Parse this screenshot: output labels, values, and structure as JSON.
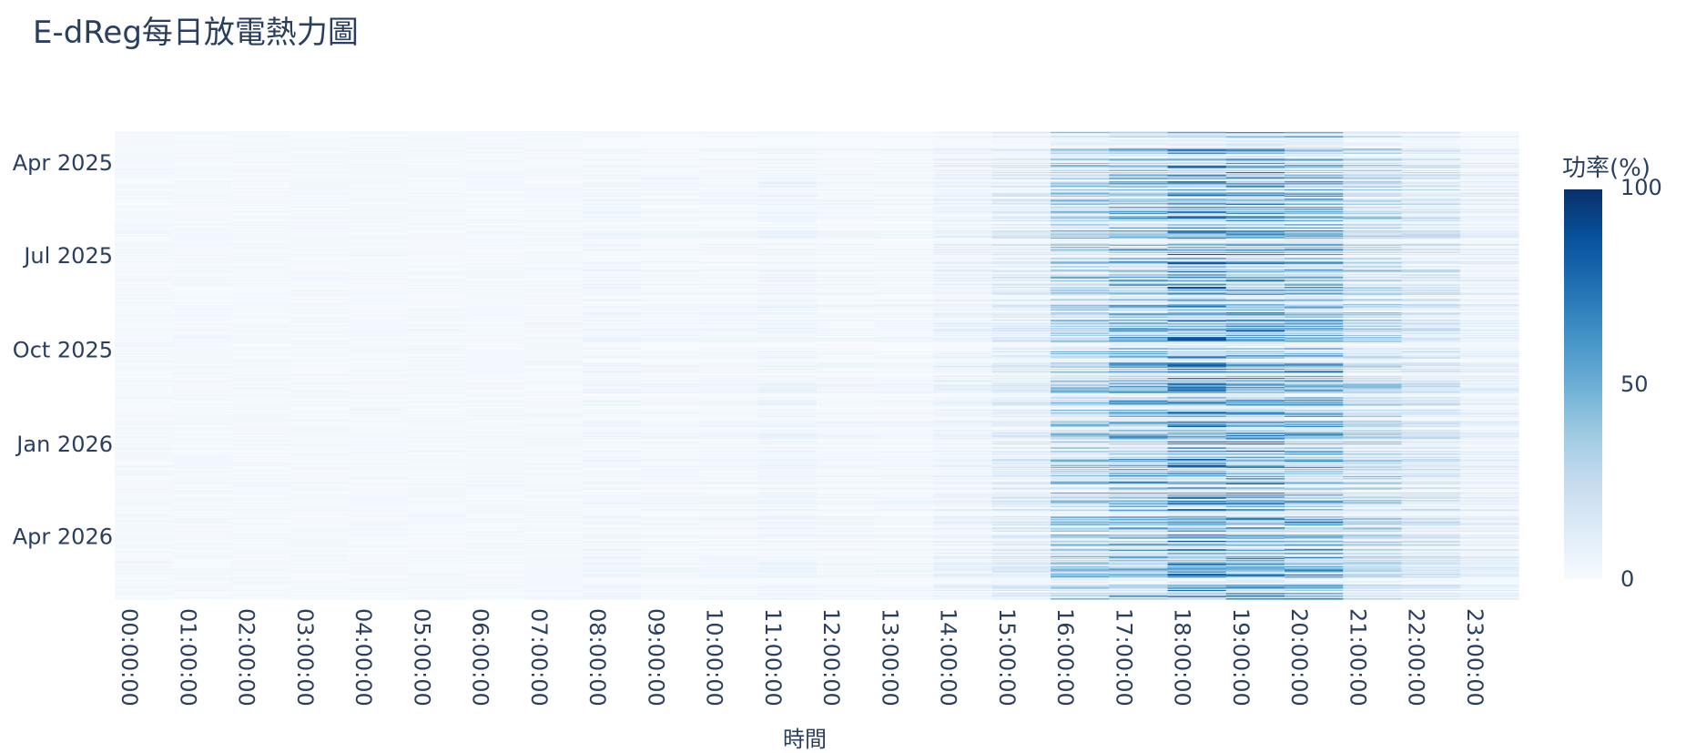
{
  "chart_data": {
    "type": "heatmap",
    "title": "E-dReg每日放電熱力圖",
    "xlabel": "時間",
    "ylabel": "",
    "colorbar": {
      "title": "功率(%)",
      "ticks": [
        "0",
        "50",
        "100"
      ],
      "range": [
        0,
        100
      ],
      "colorscale": [
        "#f7fbff",
        "#deebf7",
        "#c6dbef",
        "#9ecae1",
        "#6baed6",
        "#4292c6",
        "#2171b5",
        "#08519c",
        "#08306b"
      ]
    },
    "x_ticks": [
      "00:00:00",
      "01:00:00",
      "02:00:00",
      "03:00:00",
      "04:00:00",
      "05:00:00",
      "06:00:00",
      "07:00:00",
      "08:00:00",
      "09:00:00",
      "10:00:00",
      "11:00:00",
      "12:00:00",
      "13:00:00",
      "14:00:00",
      "15:00:00",
      "16:00:00",
      "17:00:00",
      "18:00:00",
      "19:00:00",
      "20:00:00",
      "21:00:00",
      "22:00:00",
      "23:00:00"
    ],
    "y_ticks": [
      "Apr 2025",
      "Jul 2025",
      "Oct 2025",
      "Jan 2026",
      "Apr 2026"
    ],
    "y_range": [
      "2025-03-01",
      "2026-06-01"
    ],
    "hourly_mean_pct": [
      2,
      1,
      1,
      1,
      1,
      1,
      1,
      1,
      5,
      4,
      4,
      6,
      4,
      4,
      8,
      14,
      35,
      45,
      60,
      52,
      48,
      30,
      20,
      10
    ],
    "grid": false
  }
}
